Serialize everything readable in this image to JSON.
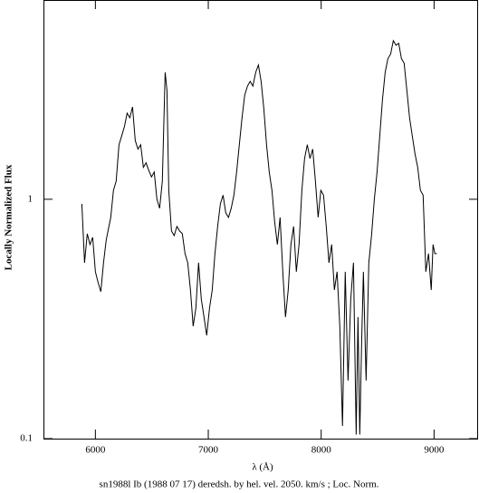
{
  "chart_data": {
    "type": "line",
    "caption": "sn1988l Ib (1988 07 17) deredsh. by hel. vel.  2050. km/s ;  Loc. Norm.",
    "xlabel": "λ (Å)",
    "ylabel": "Locally Normalized Flux",
    "log_y": true,
    "color": "#000000",
    "xlim": [
      5540,
      9390
    ],
    "xticks": [
      6000,
      7000,
      8000,
      9000
    ],
    "ylim": [
      0.1,
      6.8
    ],
    "yticks": [
      0.1,
      1
    ],
    "x": [
      5880,
      5904,
      5928,
      5952,
      5976,
      6000,
      6024,
      6048,
      6072,
      6096,
      6120,
      6136,
      6160,
      6184,
      6209,
      6233,
      6257,
      6281,
      6305,
      6329,
      6353,
      6377,
      6401,
      6425,
      6449,
      6473,
      6497,
      6521,
      6545,
      6569,
      6593,
      6618,
      6634,
      6650,
      6674,
      6698,
      6722,
      6746,
      6770,
      6794,
      6818,
      6842,
      6866,
      6890,
      6914,
      6938,
      6962,
      6986,
      7011,
      7035,
      7059,
      7083,
      7107,
      7131,
      7155,
      7179,
      7203,
      7227,
      7251,
      7275,
      7299,
      7323,
      7347,
      7371,
      7395,
      7420,
      7444,
      7468,
      7492,
      7516,
      7540,
      7564,
      7588,
      7612,
      7636,
      7660,
      7684,
      7708,
      7732,
      7756,
      7780,
      7804,
      7829,
      7853,
      7877,
      7901,
      7925,
      7949,
      7973,
      7997,
      8021,
      8045,
      8069,
      8093,
      8117,
      8141,
      8165,
      8189,
      8213,
      8238,
      8262,
      8286,
      8310,
      8326,
      8342,
      8358,
      8374,
      8398,
      8422,
      8446,
      8471,
      8495,
      8519,
      8543,
      8567,
      8591,
      8615,
      8639,
      8663,
      8687,
      8711,
      8735,
      8759,
      8783,
      8807,
      8831,
      8855,
      8879,
      8903,
      8927,
      8951,
      8975,
      8991,
      9007,
      9024
    ],
    "values": [
      0.957,
      0.543,
      0.718,
      0.647,
      0.693,
      0.498,
      0.449,
      0.411,
      0.543,
      0.676,
      0.77,
      0.84,
      1.09,
      1.19,
      1.69,
      1.84,
      2.01,
      2.29,
      2.19,
      2.43,
      1.76,
      1.62,
      1.69,
      1.36,
      1.42,
      1.32,
      1.24,
      1.3,
      1.0,
      0.917,
      1.19,
      3.39,
      2.85,
      1.09,
      0.737,
      0.705,
      0.77,
      0.737,
      0.718,
      0.593,
      0.543,
      0.418,
      0.295,
      0.351,
      0.543,
      0.383,
      0.322,
      0.27,
      0.351,
      0.418,
      0.593,
      0.77,
      0.957,
      1.04,
      0.877,
      0.84,
      0.917,
      1.04,
      1.3,
      1.69,
      2.19,
      2.73,
      2.97,
      3.11,
      2.97,
      3.39,
      3.64,
      3.11,
      2.39,
      1.69,
      1.3,
      1.09,
      0.804,
      0.647,
      0.84,
      0.498,
      0.322,
      0.418,
      0.647,
      0.77,
      0.498,
      0.647,
      1.09,
      1.48,
      1.69,
      1.48,
      1.62,
      1.19,
      0.84,
      1.09,
      1.04,
      0.77,
      0.543,
      0.647,
      0.418,
      0.498,
      0.295,
      0.113,
      0.498,
      0.175,
      0.383,
      0.543,
      0.104,
      0.322,
      0.104,
      0.248,
      0.498,
      0.175,
      0.543,
      0.705,
      1.0,
      1.3,
      1.84,
      2.61,
      3.39,
      3.87,
      4.04,
      4.6,
      4.4,
      4.48,
      3.87,
      3.7,
      2.85,
      2.19,
      1.84,
      1.55,
      1.36,
      1.09,
      1.04,
      0.498,
      0.593,
      0.418,
      0.647,
      0.593,
      0.593
    ]
  }
}
